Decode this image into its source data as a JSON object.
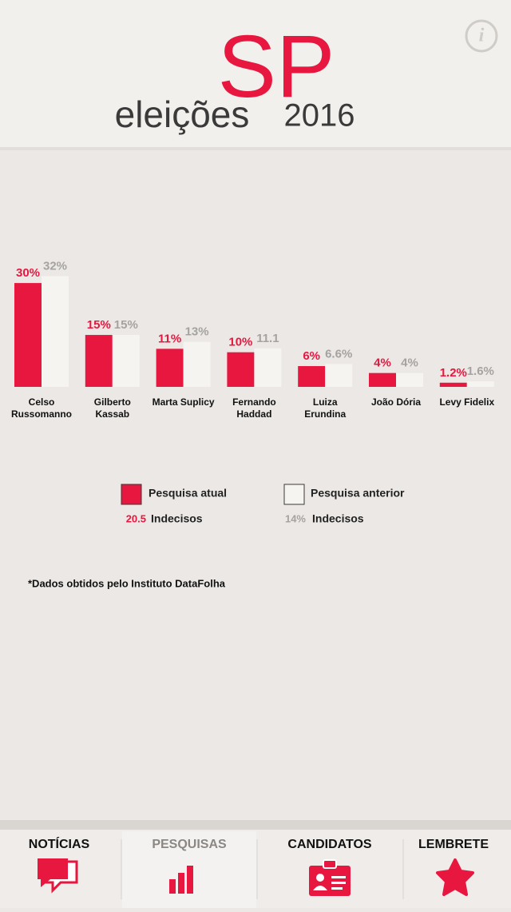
{
  "header": {
    "logo": [
      "eleições",
      "SP",
      "2016"
    ],
    "info": "i"
  },
  "chart_data": {
    "type": "bar",
    "categories": [
      [
        "Celso",
        "Russomanno"
      ],
      [
        "Gilberto",
        "Kassab"
      ],
      [
        "Marta Suplicy"
      ],
      [
        "Fernando",
        "Haddad"
      ],
      [
        "Luiza",
        "Erundina"
      ],
      [
        "João Dória"
      ],
      [
        "Levy Fidelix"
      ]
    ],
    "series": [
      {
        "name": "Pesquisa atual",
        "color": "#e8173f",
        "label_color": "#e8173f",
        "values": [
          30,
          15,
          11,
          10,
          6,
          4,
          1.2
        ],
        "value_labels": [
          "30%",
          "15%",
          "11%",
          "10%",
          "6%",
          "4%",
          "1.2%"
        ]
      },
      {
        "name": "Pesquisa anterior",
        "color": "#f6f4f1",
        "label_color": "#a5a3a1",
        "values": [
          32,
          15,
          13,
          11.1,
          6.6,
          4,
          1.6
        ],
        "value_labels": [
          "32%",
          "15%",
          "13%",
          "11.1",
          "6.6%",
          "4%",
          "1.6%"
        ]
      }
    ],
    "undecided": [
      {
        "value": "20.5",
        "text": "Indecisos"
      },
      {
        "value": "14%",
        "text": "Indecisos"
      }
    ]
  },
  "note": "*Dados obtidos pelo Instituto DataFolha",
  "tabs": [
    "NOTÍCIAS",
    "PESQUISAS",
    "CANDIDATOS",
    "LEMBRETE"
  ]
}
